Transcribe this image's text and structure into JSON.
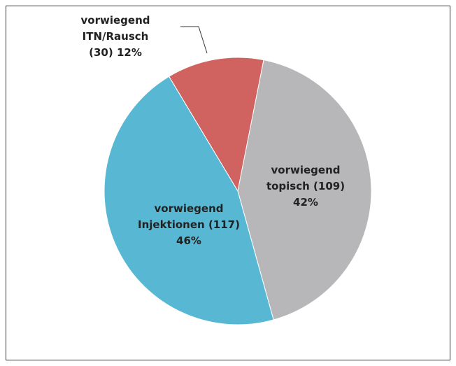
{
  "chart_data": {
    "type": "pie",
    "categories": [
      "vorwiegend ITN/Rausch",
      "vorwiegend topisch",
      "vorwiegend Injektionen"
    ],
    "values": [
      30,
      109,
      117
    ],
    "value_labels": [
      "(30)",
      "(109)",
      "(117)"
    ],
    "percents": [
      12,
      42,
      46
    ],
    "percent_labels": [
      "12%",
      "42%",
      "46%"
    ],
    "colors": [
      "#d0625f",
      "#b7b6b9",
      "#58b8d4"
    ]
  }
}
